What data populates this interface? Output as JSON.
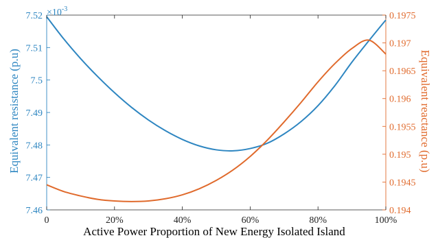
{
  "chart_data": {
    "type": "line",
    "xlabel": "Active Power Proportion of New Energy Isolated Island",
    "x_tick_labels": [
      "0",
      "20%",
      "40%",
      "60%",
      "80%",
      "100%"
    ],
    "x_ticks": [
      0,
      20,
      40,
      60,
      80,
      100
    ],
    "xlim": [
      0,
      100
    ],
    "left_axis": {
      "label": "Equivalent resistance (p.u)",
      "multiplier_label": "×10",
      "multiplier_exponent": "-3",
      "ylim": [
        7.46,
        7.52
      ],
      "ticks": [
        7.46,
        7.47,
        7.48,
        7.49,
        7.5,
        7.51,
        7.52
      ],
      "tick_labels": [
        "7.46",
        "7.47",
        "7.48",
        "7.49",
        "7.5",
        "7.51",
        "7.52"
      ],
      "color": "#2e86c1"
    },
    "right_axis": {
      "label": "Equivalent reactance (p.u)",
      "ylim": [
        0.194,
        0.1975
      ],
      "ticks": [
        0.194,
        0.1945,
        0.195,
        0.1955,
        0.196,
        0.1965,
        0.197,
        0.1975
      ],
      "tick_labels": [
        "0.194",
        "0.1945",
        "0.195",
        "0.1955",
        "0.196",
        "0.1965",
        "0.197",
        "0.1975"
      ],
      "color": "#e06a2c"
    },
    "series": [
      {
        "axis": "left",
        "color": "#2e86c1",
        "x": [
          0,
          5,
          10,
          15,
          20,
          25,
          30,
          35,
          40,
          45,
          50,
          55,
          60,
          65,
          70,
          75,
          80,
          85,
          90,
          95,
          100
        ],
        "y": [
          7.5195,
          7.5127,
          7.5066,
          7.5011,
          7.4961,
          7.4916,
          7.4877,
          7.4844,
          7.4817,
          7.4797,
          7.4785,
          7.4782,
          7.4789,
          7.4805,
          7.4834,
          7.4872,
          7.4921,
          7.4983,
          7.5055,
          7.5121,
          7.5185
        ]
      },
      {
        "axis": "right",
        "color": "#e06a2c",
        "x": [
          0,
          5,
          10,
          15,
          20,
          25,
          30,
          35,
          40,
          45,
          50,
          55,
          60,
          65,
          70,
          75,
          80,
          85,
          90,
          95,
          100
        ],
        "y": [
          0.19445,
          0.19433,
          0.19425,
          0.19419,
          0.19416,
          0.19415,
          0.19416,
          0.1942,
          0.19427,
          0.19438,
          0.19453,
          0.19472,
          0.19496,
          0.19525,
          0.19558,
          0.19593,
          0.1963,
          0.19663,
          0.1969,
          0.19705,
          0.1968
        ]
      }
    ]
  }
}
